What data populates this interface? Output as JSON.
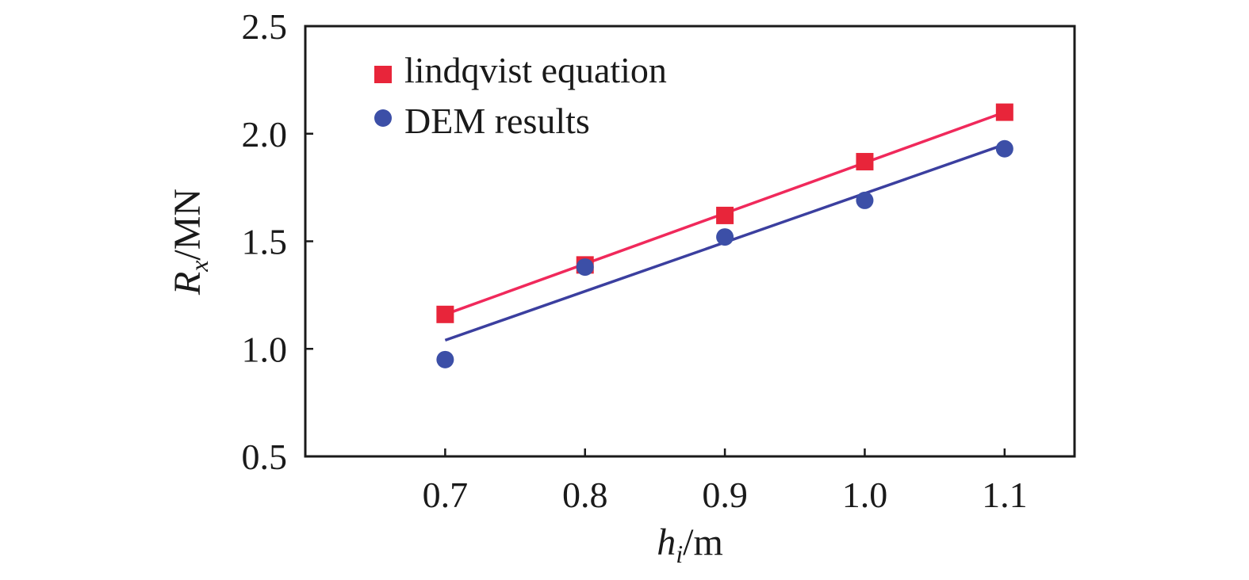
{
  "chart_data": {
    "type": "scatter",
    "x_axis": {
      "label_main": "h",
      "label_sub": "i",
      "label_unit": "/m",
      "ticks": [
        "0.7",
        "0.8",
        "0.9",
        "1.0",
        "1.1"
      ],
      "tick_values": [
        0.7,
        0.8,
        0.9,
        1.0,
        1.1
      ],
      "range": [
        0.6,
        1.15
      ]
    },
    "y_axis": {
      "label_main": "R",
      "label_sub": "x",
      "label_unit": "/MN",
      "ticks": [
        "0.5",
        "1.0",
        "1.5",
        "2.0",
        "2.5"
      ],
      "tick_values": [
        0.5,
        1.0,
        1.5,
        2.0,
        2.5
      ],
      "range": [
        0.5,
        2.5
      ]
    },
    "grid": false,
    "legend_position": "top-left",
    "series": [
      {
        "name": "lindqvist equation",
        "marker": "square",
        "color": "#e8253a",
        "line_color": "#f0295b",
        "x": [
          0.7,
          0.8,
          0.9,
          1.0,
          1.1
        ],
        "y": [
          1.16,
          1.39,
          1.62,
          1.87,
          2.1
        ],
        "fit": {
          "x": [
            0.7,
            1.1
          ],
          "y": [
            1.16,
            2.1
          ]
        }
      },
      {
        "name": "DEM results",
        "marker": "circle",
        "color": "#3c4fa7",
        "line_color": "#3b3f9f",
        "x": [
          0.7,
          0.8,
          0.9,
          1.0,
          1.1
        ],
        "y": [
          0.95,
          1.38,
          1.52,
          1.69,
          1.93
        ],
        "fit": {
          "x": [
            0.7,
            1.1
          ],
          "y": [
            1.04,
            1.95
          ]
        }
      }
    ]
  }
}
